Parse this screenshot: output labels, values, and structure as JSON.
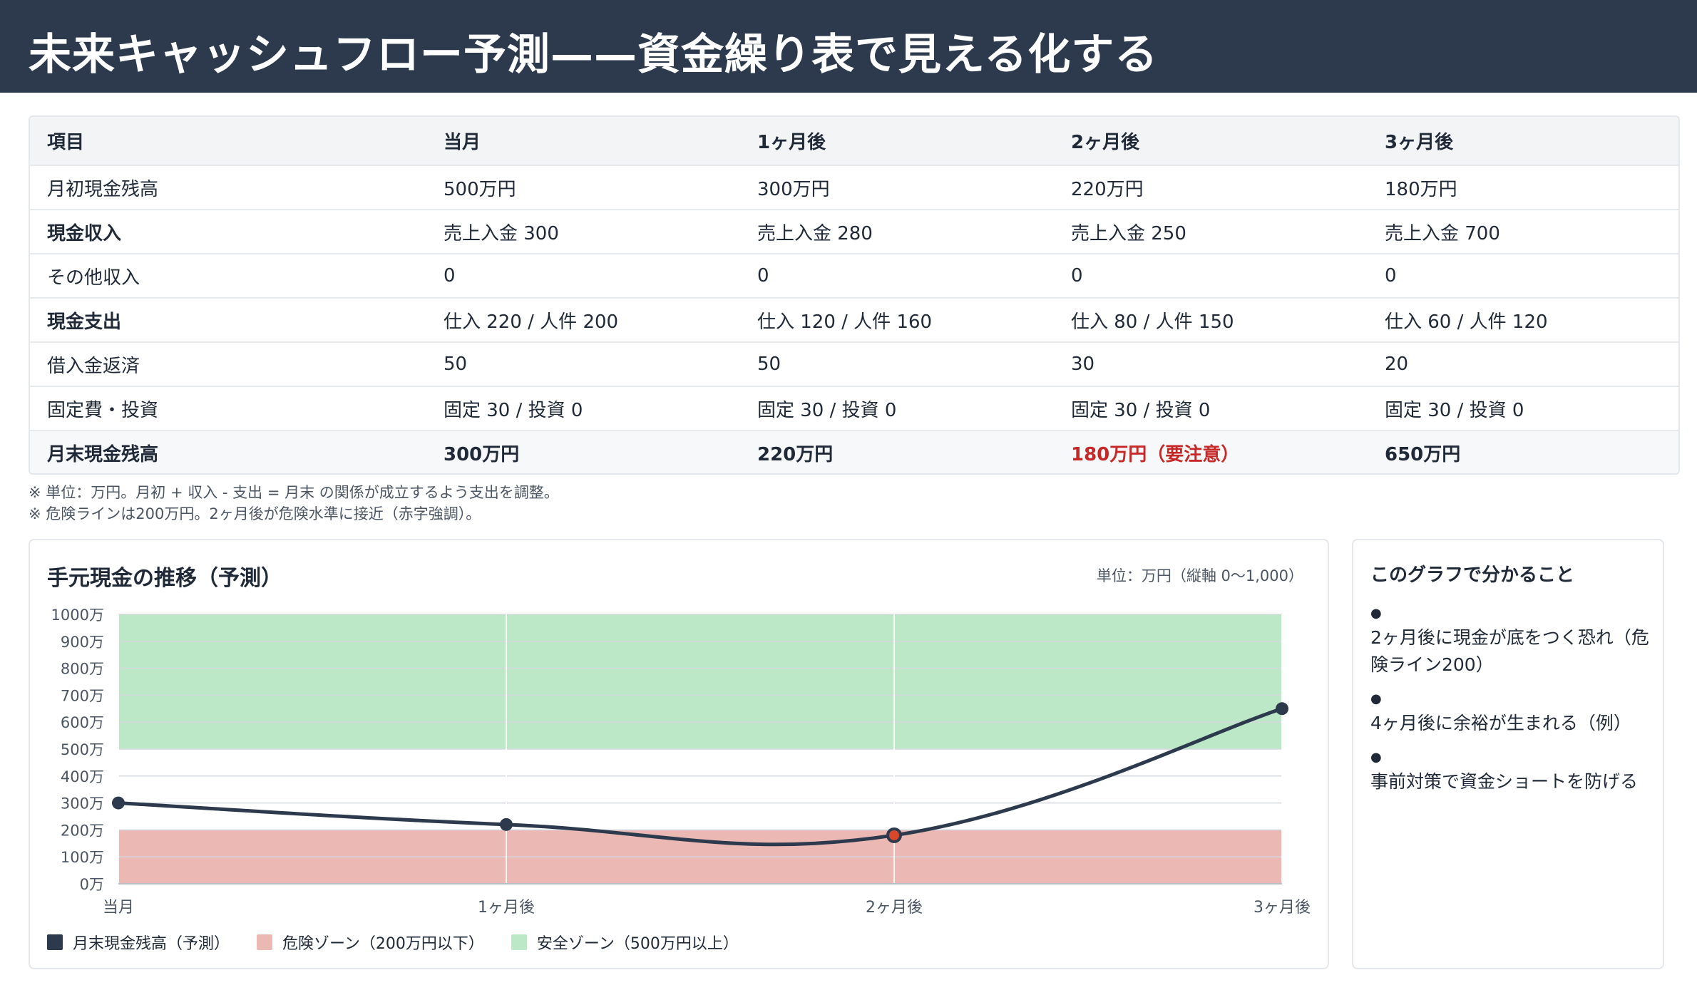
{
  "header": {
    "title": "未来キャッシュフロー予測——資金繰り表で見える化する"
  },
  "table": {
    "columns": [
      "項目",
      "当月",
      "1ヶ月後",
      "2ヶ月後",
      "3ヶ月後"
    ],
    "rows": [
      {
        "label": "月初現金残高",
        "values": [
          "500万円",
          "300万円",
          "220万円",
          "180万円"
        ]
      },
      {
        "label": "現金収入",
        "values": [
          "売上入金 300",
          "売上入金 280",
          "売上入金 250",
          "売上入金 700"
        ]
      },
      {
        "label": "その他収入",
        "values": [
          "0",
          "0",
          "0",
          "0"
        ]
      },
      {
        "label": "現金支出",
        "values": [
          "仕入 220 / 人件 200",
          "仕入 120 / 人件 160",
          "仕入 80 / 人件 150",
          "仕入 60 / 人件 120"
        ]
      },
      {
        "label": "借入金返済",
        "values": [
          "50",
          "50",
          "30",
          "20"
        ]
      },
      {
        "label": "固定費・投資",
        "values": [
          "固定 30 / 投資 0",
          "固定 30 / 投資 0",
          "固定 30 / 投資 0",
          "固定 30 / 投資 0"
        ]
      },
      {
        "label": "月末現金残高",
        "values": [
          "300万円",
          "220万円",
          "180万円（要注意）",
          "650万円"
        ]
      }
    ],
    "warn_color": "#c62828"
  },
  "notes": [
    "※ 単位：万円。月初 + 収入 - 支出 = 月末 の関係が成立するよう支出を調整。",
    "※ 危険ラインは200万円。2ヶ月後が危険水準に接近（赤字強調）。"
  ],
  "chart": {
    "title": "手元現金の推移（予測）",
    "unit_note": "単位：万円（縦軸 0〜1,000）"
  },
  "chart_data": {
    "type": "line",
    "categories": [
      "当月",
      "1ヶ月後",
      "2ヶ月後",
      "3ヶ月後"
    ],
    "series": [
      {
        "name": "月末現金残高（予測）",
        "values": [
          300,
          220,
          180,
          650
        ],
        "color": "#2d3a4d"
      }
    ],
    "bands": [
      {
        "name": "危険ゾーン（200万円以下）",
        "from": 0,
        "to": 200,
        "color": "#ebb8b4"
      },
      {
        "name": "安全ゾーン（500万円以上）",
        "from": 500,
        "to": 1000,
        "color": "#bce8c8"
      }
    ],
    "ylim": [
      0,
      1000
    ],
    "yticks": [
      0,
      100,
      200,
      300,
      400,
      500,
      600,
      700,
      800,
      900,
      1000
    ],
    "ytick_suffix": "万",
    "highlight_point_color": "#d9482b",
    "grid": true,
    "legend_position": "bottom-left"
  },
  "side": {
    "title": "このグラフで分かること",
    "items": [
      "2ヶ月後に現金が底をつく恐れ（危険ライン200）",
      "4ヶ月後に余裕が生まれる（例）",
      "事前対策で資金ショートを防げる"
    ]
  }
}
